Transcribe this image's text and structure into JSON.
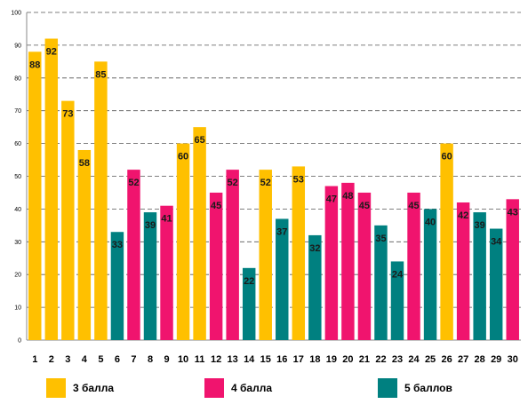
{
  "chart_data": {
    "type": "bar",
    "categories": [
      "1",
      "2",
      "3",
      "4",
      "5",
      "6",
      "7",
      "8",
      "9",
      "10",
      "11",
      "12",
      "13",
      "14",
      "15",
      "16",
      "17",
      "18",
      "19",
      "20",
      "21",
      "22",
      "23",
      "24",
      "25",
      "26",
      "27",
      "28",
      "29",
      "30"
    ],
    "values": [
      88,
      92,
      73,
      58,
      85,
      33,
      52,
      39,
      41,
      60,
      65,
      45,
      52,
      22,
      52,
      37,
      53,
      32,
      47,
      48,
      45,
      35,
      24,
      45,
      40,
      60,
      42,
      39,
      34,
      43
    ],
    "groups": [
      "3 балла",
      "3 балла",
      "3 балла",
      "3 балла",
      "3 балла",
      "5 баллов",
      "4 балла",
      "5 баллов",
      "4 балла",
      "3 балла",
      "3 балла",
      "4 балла",
      "4 балла",
      "5 баллов",
      "3 балла",
      "5 баллов",
      "3 балла",
      "5 баллов",
      "4 балла",
      "4 балла",
      "4 балла",
      "5 баллов",
      "5 баллов",
      "4 балла",
      "5 баллов",
      "3 балла",
      "4 балла",
      "5 баллов",
      "5 баллов",
      "4 балла"
    ],
    "legend": [
      {
        "name": "3 балла",
        "color": "#FFC000"
      },
      {
        "name": "4 балла",
        "color": "#F0146E"
      },
      {
        "name": "5 баллов",
        "color": "#008080"
      }
    ],
    "y_ticks": [
      "0",
      "10",
      "20",
      "30",
      "40",
      "50",
      "60",
      "70",
      "80",
      "90",
      "100"
    ],
    "ylim": [
      0,
      100
    ],
    "grid": true,
    "legend_position": "bottom",
    "title": "",
    "xlabel": "",
    "ylabel": ""
  }
}
